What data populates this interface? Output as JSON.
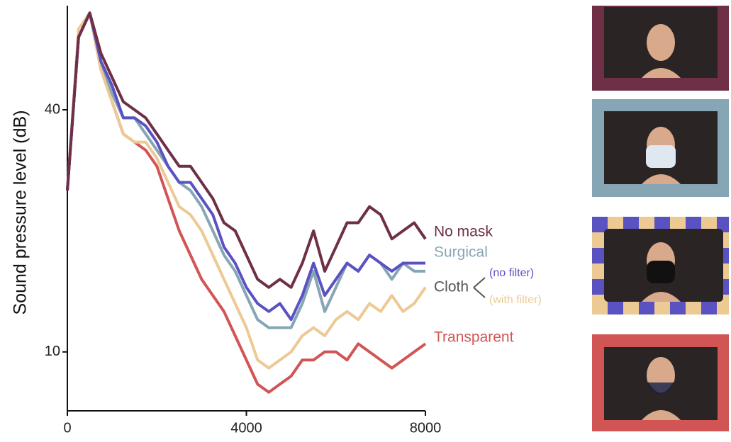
{
  "chart_data": {
    "type": "line",
    "y_label": "Sound pressure level (dB)",
    "x": [
      0,
      250,
      500,
      750,
      1000,
      1250,
      1500,
      1750,
      2000,
      2250,
      2500,
      2750,
      3000,
      3250,
      3500,
      3750,
      4000,
      4250,
      4500,
      4750,
      5000,
      5250,
      5500,
      5750,
      6000,
      6250,
      6500,
      6750,
      7000,
      7250,
      7500,
      7750,
      8000
    ],
    "series": [
      {
        "name": "No mask",
        "color": "#6e2f47",
        "values": [
          30,
          49,
          52,
          47,
          44,
          41,
          40,
          39,
          37,
          35,
          33,
          33,
          31,
          29,
          26,
          25,
          22,
          19,
          18,
          19,
          18,
          21,
          25,
          20,
          23,
          26,
          26,
          28,
          27,
          24,
          25,
          26,
          24
        ]
      },
      {
        "name": "Surgical",
        "color": "#86a6b6",
        "values": [
          30,
          49,
          52,
          46,
          42,
          39,
          39,
          37,
          35,
          33,
          31,
          30,
          28,
          25,
          22,
          20,
          17,
          14,
          13,
          13,
          13,
          16,
          20,
          15,
          18,
          21,
          20,
          22,
          21,
          19,
          21,
          20,
          20
        ]
      },
      {
        "name": "(no filter)",
        "color": "#5b52c2",
        "values": [
          30,
          49,
          52,
          46,
          43,
          39,
          39,
          38,
          36,
          33,
          31,
          31,
          29,
          27,
          23,
          21,
          18,
          16,
          15,
          16,
          14,
          17,
          21,
          17,
          19,
          21,
          20,
          22,
          21,
          20,
          21,
          21,
          21
        ]
      },
      {
        "name": "(with filter)",
        "color": "#edc994",
        "values": [
          30,
          50,
          52,
          45,
          41,
          37,
          36,
          36,
          34,
          31,
          28,
          27,
          25,
          22,
          19,
          16,
          13,
          9,
          8,
          9,
          10,
          12,
          13,
          12,
          14,
          15,
          14,
          16,
          15,
          17,
          15,
          16,
          18
        ]
      },
      {
        "name": "Transparent",
        "color": "#d25555",
        "values": [
          30,
          49,
          52,
          45,
          41,
          37,
          36,
          35,
          33,
          29,
          25,
          22,
          19,
          17,
          15,
          12,
          9,
          6,
          5,
          6,
          7,
          9,
          9,
          10,
          10,
          9,
          11,
          10,
          9,
          8,
          9,
          10,
          11
        ]
      }
    ],
    "legend_group_label": "Cloth",
    "xlim": [
      0,
      8000
    ],
    "xticks": [
      0,
      4000,
      8000
    ],
    "ylim": [
      2.7,
      52.9
    ],
    "yticks": [
      10,
      40
    ]
  }
}
